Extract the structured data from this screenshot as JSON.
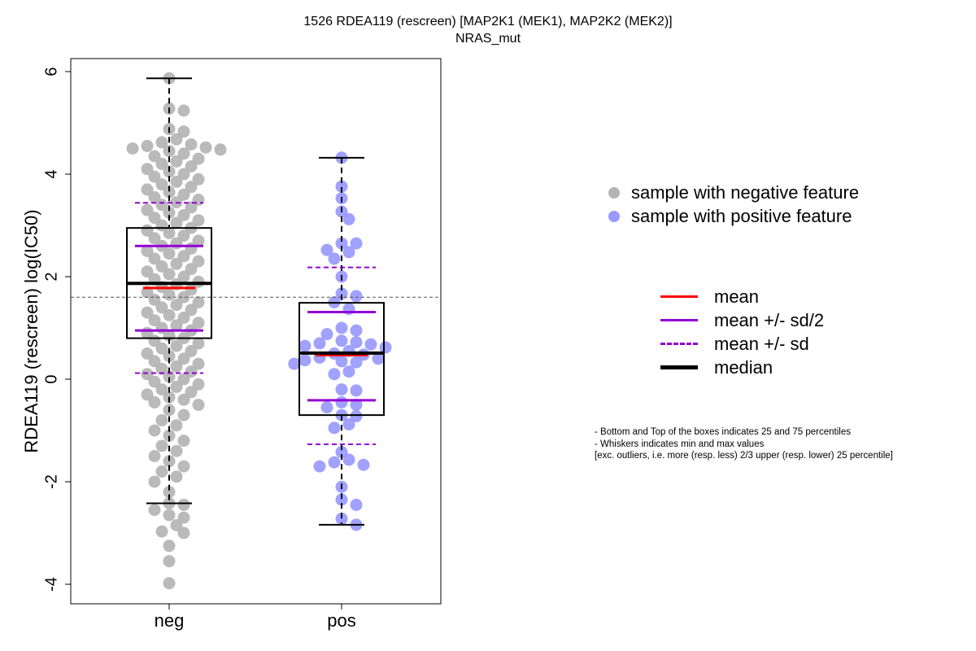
{
  "title_line1": "1526 RDEA119 (rescreen) [MAP2K1 (MEK1), MAP2K2 (MEK2)]",
  "title_line2": "NRAS_mut",
  "points_legend": [
    {
      "label": "sample with negative feature",
      "color": "#b4b4b4"
    },
    {
      "label": "sample with positive feature",
      "color": "#9999ff"
    }
  ],
  "lines_legend": [
    {
      "label": "mean",
      "color": "#ff0000",
      "style": "solid"
    },
    {
      "label": "mean +/- sd/2",
      "color": "#9400d3",
      "style": "solid"
    },
    {
      "label": "mean +/- sd",
      "color": "#9400d3",
      "style": "dashed"
    },
    {
      "label": "median",
      "color": "#000000",
      "style": "solid-thick"
    }
  ],
  "notes": [
    "- Bottom and Top of the boxes indicates 25 and 75 percentiles",
    "- Whiskers indicates min and max values",
    "[exc. outliers, i.e. more (resp. less) 2/3 upper (resp. lower) 25 percentile]"
  ],
  "chart_data": {
    "type": "scatter",
    "subtype": "beeswarm boxplot",
    "ylabel": "RDEA119 (rescreen) log(IC50)",
    "xlabel": "",
    "categories": [
      "neg",
      "pos"
    ],
    "ylim": [
      -4.4,
      6.25
    ],
    "yticks": [
      -4,
      -2,
      0,
      2,
      4,
      6
    ],
    "reference_line_y": 1.6,
    "series": [
      {
        "name": "neg",
        "color": "#b4b4b4",
        "box": {
          "q1": 0.8,
          "median": 1.87,
          "q3": 2.95,
          "whisker_low": -2.42,
          "whisker_high": 5.87
        },
        "mean": 1.78,
        "mean_minus_half_sd": 0.95,
        "mean_plus_half_sd": 2.6,
        "mean_minus_sd": 0.12,
        "mean_plus_sd": 3.44,
        "y_range_visible": [
          -3.98,
          5.87
        ],
        "values": [
          5.87,
          5.28,
          5.24,
          4.88,
          4.83,
          4.68,
          4.62,
          4.58,
          4.55,
          4.52,
          4.5,
          4.48,
          4.45,
          4.4,
          4.35,
          4.3,
          4.25,
          4.2,
          4.15,
          4.1,
          4.05,
          4.0,
          3.95,
          3.9,
          3.85,
          3.8,
          3.75,
          3.7,
          3.65,
          3.6,
          3.55,
          3.5,
          3.45,
          3.4,
          3.35,
          3.3,
          3.25,
          3.2,
          3.15,
          3.1,
          3.05,
          3.0,
          2.95,
          2.9,
          2.85,
          2.8,
          2.75,
          2.7,
          2.65,
          2.6,
          2.55,
          2.5,
          2.45,
          2.4,
          2.35,
          2.3,
          2.25,
          2.2,
          2.15,
          2.1,
          2.05,
          2.0,
          1.95,
          1.9,
          1.85,
          1.8,
          1.75,
          1.7,
          1.65,
          1.6,
          1.55,
          1.5,
          1.45,
          1.4,
          1.35,
          1.3,
          1.25,
          1.2,
          1.15,
          1.1,
          1.05,
          1.0,
          0.95,
          0.9,
          0.85,
          0.8,
          0.75,
          0.7,
          0.65,
          0.6,
          0.55,
          0.5,
          0.45,
          0.4,
          0.35,
          0.3,
          0.25,
          0.2,
          0.15,
          0.1,
          0.05,
          0.0,
          -0.05,
          -0.1,
          -0.15,
          -0.2,
          -0.25,
          -0.3,
          -0.35,
          -0.4,
          -0.45,
          -0.5,
          -0.6,
          -0.7,
          -0.8,
          -0.9,
          -1.0,
          -1.1,
          -1.2,
          -1.3,
          -1.4,
          -1.5,
          -1.6,
          -1.7,
          -1.8,
          -1.9,
          -2.0,
          -2.2,
          -2.42,
          -2.45,
          -2.55,
          -2.65,
          -2.7,
          -2.85,
          -2.97,
          -3.0,
          -3.25,
          -3.55,
          -3.98
        ]
      },
      {
        "name": "pos",
        "color": "#9999ff",
        "box": {
          "q1": -0.7,
          "median": 0.51,
          "q3": 1.49,
          "whisker_low": -2.84,
          "whisker_high": 4.32
        },
        "mean": 0.47,
        "mean_minus_half_sd": -0.41,
        "mean_plus_half_sd": 1.31,
        "mean_minus_sd": -1.27,
        "mean_plus_sd": 2.18,
        "values": [
          4.32,
          3.76,
          3.53,
          3.27,
          3.12,
          2.65,
          2.65,
          2.52,
          2.48,
          2.35,
          2.0,
          1.67,
          1.62,
          1.5,
          1.37,
          1.0,
          0.95,
          0.88,
          0.75,
          0.72,
          0.7,
          0.68,
          0.65,
          0.62,
          0.55,
          0.5,
          0.48,
          0.42,
          0.4,
          0.37,
          0.35,
          0.33,
          0.3,
          0.15,
          0.1,
          -0.2,
          -0.22,
          -0.45,
          -0.5,
          -0.55,
          -0.7,
          -0.72,
          -0.88,
          -0.95,
          -1.42,
          -1.57,
          -1.62,
          -1.67,
          -1.7,
          -2.1,
          -2.35,
          -2.45,
          -2.72,
          -2.84
        ]
      }
    ]
  }
}
